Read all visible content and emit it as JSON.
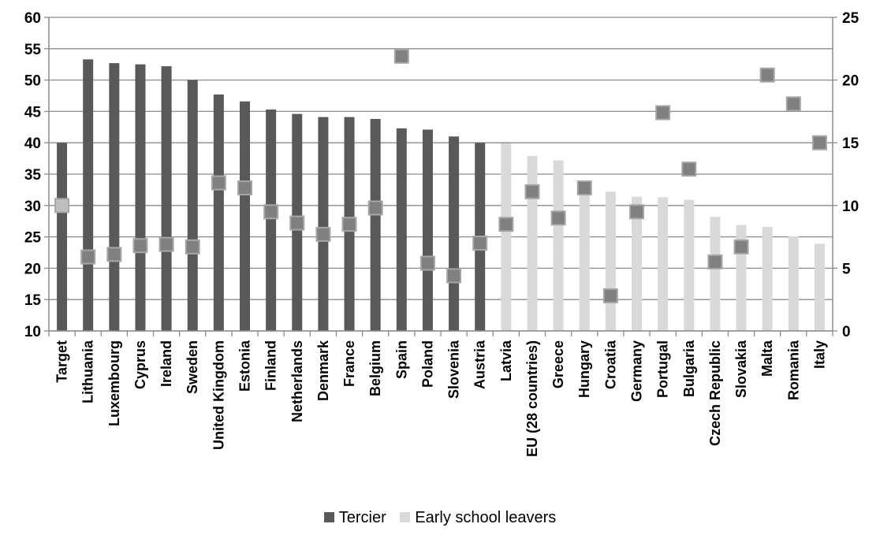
{
  "chart_data": {
    "type": "bar",
    "categories": [
      "Target",
      "Lithuania",
      "Luxembourg",
      "Cyprus",
      "Ireland",
      "Sweden",
      "United Kingdom",
      "Estonia",
      "Finland",
      "Netherlands",
      "Denmark",
      "France",
      "Belgium",
      "Spain",
      "Poland",
      "Slovenia",
      "Austria",
      "Latvia",
      "EU (28 countries)",
      "Greece",
      "Hungary",
      "Croatia",
      "Germany",
      "Portugal",
      "Bulgaria",
      "Czech Republic",
      "Slovakia",
      "Malta",
      "Romania",
      "Italy"
    ],
    "bar_values": [
      40,
      53.3,
      52.7,
      52.5,
      52.2,
      50,
      47.7,
      46.6,
      45.3,
      44.6,
      44.1,
      44.1,
      43.8,
      42.3,
      42.1,
      41,
      40,
      39.9,
      37.9,
      37.2,
      32.9,
      32.2,
      31.4,
      31.3,
      30.9,
      28.2,
      26.9,
      26.6,
      25.1,
      23.9
    ],
    "bar_series_index": [
      0,
      0,
      0,
      0,
      0,
      0,
      0,
      0,
      0,
      0,
      0,
      0,
      0,
      0,
      0,
      0,
      0,
      1,
      1,
      1,
      1,
      1,
      1,
      1,
      1,
      1,
      1,
      1,
      1,
      1
    ],
    "marker_values": [
      10,
      5.9,
      6.1,
      6.8,
      6.9,
      6.7,
      11.8,
      11.4,
      9.5,
      8.6,
      7.7,
      8.5,
      9.8,
      21.9,
      5.4,
      4.4,
      7,
      8.5,
      11.1,
      9,
      11.4,
      2.8,
      9.5,
      17.4,
      12.9,
      5.5,
      6.7,
      20.4,
      18.1,
      15
    ],
    "series": [
      {
        "name": "Tercier",
        "color": "#595959"
      },
      {
        "name": "Early school leavers",
        "color": "#d9d9d9"
      }
    ],
    "marker_color": "#808080",
    "marker_highlight_color": "#a6a6a6",
    "ylim_left": [
      10,
      60
    ],
    "yticks_left": [
      "10",
      "15",
      "20",
      "25",
      "30",
      "35",
      "40",
      "45",
      "50",
      "55",
      "60"
    ],
    "ylim_right": [
      0,
      25
    ],
    "yticks_right": [
      "0",
      "5",
      "10",
      "15",
      "20",
      "25"
    ],
    "grid": true,
    "legend_position": "bottom-center"
  }
}
